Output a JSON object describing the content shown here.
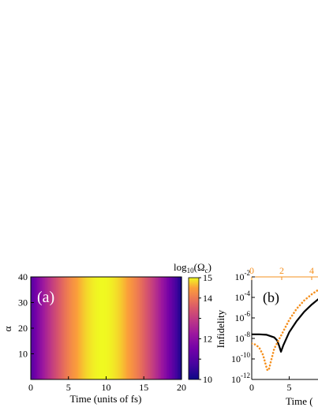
{
  "chart_data": [
    {
      "panel": "(a)",
      "type": "heatmap",
      "xlabel": "Time (units of fs)",
      "ylabel": "α",
      "xlim": [
        0,
        20
      ],
      "ylim": [
        0,
        40
      ],
      "xticks": [
        "0",
        "5",
        "10",
        "15",
        "20"
      ],
      "yticks": [
        "10",
        "20",
        "30",
        "40"
      ],
      "colorbar": {
        "label_base": "log",
        "label_sub": "10",
        "label_arg": "(Ω",
        "label_arg_sub": "c",
        "label_close": ")",
        "range": [
          10,
          15
        ],
        "ticks": [
          "10",
          "11",
          "12",
          "13",
          "14",
          "15"
        ],
        "colormap": "plasma"
      },
      "field": {
        "description_values": "log10 of Omega_c vs time, peaks at t≈9.5 fs, roughly independent of alpha",
        "peak_time": 9.5,
        "min_value": 10,
        "max_value": 15
      }
    },
    {
      "panel": "(b)",
      "type": "line",
      "ylabel": "Infidelity",
      "xlim_bottom": [
        0,
        10
      ],
      "xticks_bottom": [
        "0",
        "5"
      ],
      "xlabel_bottom": "Time (",
      "xticks_top": [
        "0",
        "2",
        "4"
      ],
      "top_axis_color": "#f5901e",
      "ytick_base": "10",
      "ytick_exponents": [
        "-2",
        "-4",
        "-6",
        "-8",
        "-10",
        "-12"
      ],
      "ylim_log10": [
        -12,
        -2
      ],
      "series": [
        {
          "style": "solid",
          "color": "#000000",
          "x": [
            0,
            1,
            2,
            3,
            3.4,
            3.7,
            3.9,
            4.2,
            5,
            6,
            7,
            8,
            9,
            10
          ],
          "log10_y": [
            -7.6,
            -7.6,
            -7.65,
            -7.9,
            -8.2,
            -8.8,
            -9.3,
            -8.7,
            -7.4,
            -6.3,
            -5.4,
            -4.7,
            -4.1,
            -3.6
          ]
        },
        {
          "style": "dotted",
          "color": "#f5901e",
          "x": [
            0,
            0.5,
            1,
            1.5,
            2,
            2.2,
            2.5,
            3,
            4,
            5,
            6,
            7,
            8,
            9,
            10
          ],
          "log10_y": [
            -8.5,
            -8.6,
            -8.9,
            -9.6,
            -10.9,
            -11.3,
            -10.4,
            -9.0,
            -7.6,
            -6.2,
            -5.1,
            -4.3,
            -3.7,
            -3.2,
            -2.8
          ]
        }
      ]
    }
  ]
}
